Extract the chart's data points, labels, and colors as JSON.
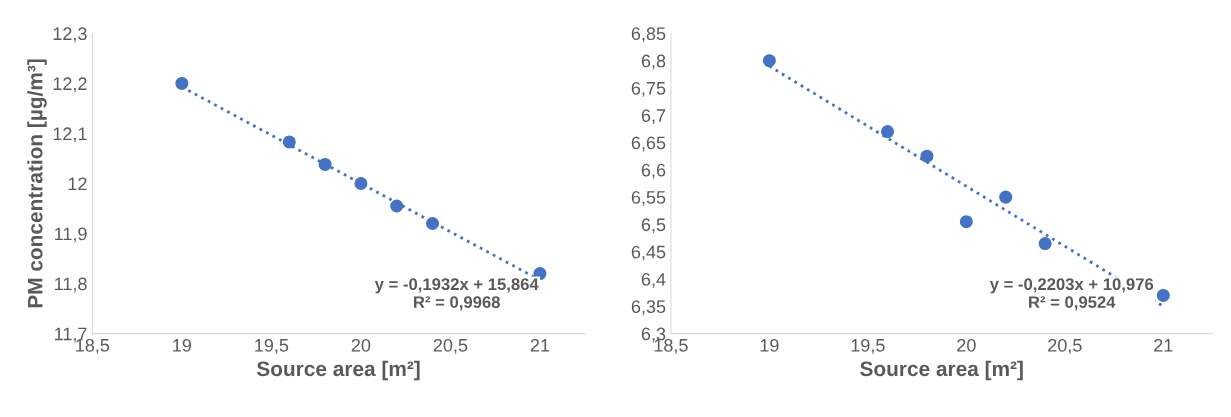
{
  "chart_data": [
    {
      "type": "scatter",
      "xlabel": "Source area [m²]",
      "ylabel": "PM concentration [µg/m³]",
      "xlim": [
        18.5,
        21.25
      ],
      "xticks": [
        {
          "value": 18.5,
          "label": "18,5"
        },
        19,
        {
          "value": 19.5,
          "label": "19,5"
        },
        20,
        {
          "value": 20.5,
          "label": "20,5"
        },
        21
      ],
      "ylim": [
        11.7,
        12.3
      ],
      "yticks": [
        {
          "value": 11.7,
          "label": "11,7"
        },
        {
          "value": 11.8,
          "label": "11,8"
        },
        {
          "value": 11.9,
          "label": "11,9"
        },
        12,
        {
          "value": 12.1,
          "label": "12,1"
        },
        {
          "value": 12.2,
          "label": "12,2"
        },
        {
          "value": 12.3,
          "label": "12,3"
        }
      ],
      "grid": false,
      "marker": "circle",
      "series": [
        {
          "color": "#4472c4",
          "x": [
            19,
            19.6,
            19.8,
            20,
            20.2,
            20.4,
            21
          ],
          "values": [
            12.2,
            12.083,
            12.038,
            12.0,
            11.955,
            11.92,
            11.82
          ]
        },
        {
          "type": "line",
          "line_style": "dotted",
          "marker": "none",
          "color": "#4472c4",
          "x": [
            19,
            21
          ],
          "values": [
            12.193,
            11.807
          ]
        }
      ],
      "annotations": [
        "y = -0,1932x + 15,864\nR² = 0,9968"
      ]
    },
    {
      "type": "scatter",
      "xlabel": "Source area [m²]",
      "xlim": [
        18.5,
        21.25
      ],
      "xticks": [
        {
          "value": 18.5,
          "label": "18,5"
        },
        19,
        {
          "value": 19.5,
          "label": "19,5"
        },
        20,
        {
          "value": 20.5,
          "label": "20,5"
        },
        21
      ],
      "ylim": [
        6.3,
        6.85
      ],
      "yticks": [
        {
          "value": 6.3,
          "label": "6,3"
        },
        {
          "value": 6.35,
          "label": "6,35"
        },
        {
          "value": 6.4,
          "label": "6,4"
        },
        {
          "value": 6.45,
          "label": "6,45"
        },
        {
          "value": 6.5,
          "label": "6,5"
        },
        {
          "value": 6.55,
          "label": "6,55"
        },
        {
          "value": 6.6,
          "label": "6,6"
        },
        {
          "value": 6.65,
          "label": "6,65"
        },
        {
          "value": 6.7,
          "label": "6,7"
        },
        {
          "value": 6.75,
          "label": "6,75"
        },
        {
          "value": 6.8,
          "label": "6,8"
        },
        {
          "value": 6.85,
          "label": "6,85"
        }
      ],
      "grid": false,
      "marker": "circle",
      "series": [
        {
          "color": "#4472c4",
          "x": [
            19,
            19.6,
            19.8,
            20,
            20.2,
            20.4,
            21
          ],
          "values": [
            6.8,
            6.67,
            6.625,
            6.505,
            6.55,
            6.465,
            6.37
          ]
        },
        {
          "type": "line",
          "line_style": "dotted",
          "marker": "none",
          "color": "#4472c4",
          "x": [
            19,
            21
          ],
          "values": [
            6.79,
            6.35
          ]
        }
      ],
      "annotations": [
        "y = -0,2203x + 10,976\nR² = 0,9524"
      ]
    }
  ]
}
